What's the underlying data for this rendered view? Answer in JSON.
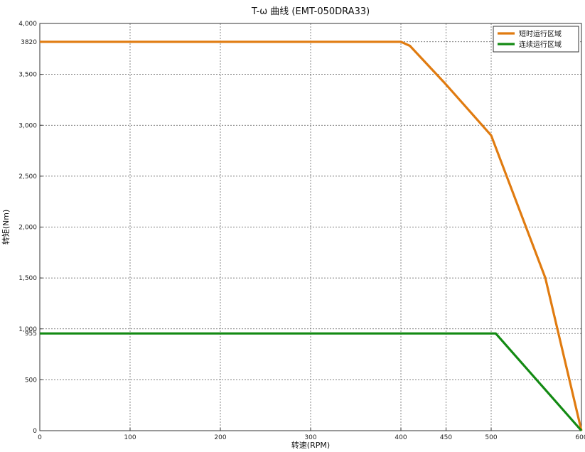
{
  "chart_data": {
    "type": "line",
    "title": "T-ω 曲线 (EMT-050DRA33)",
    "xlabel": "转速(RPM)",
    "ylabel": "转矩(Nm)",
    "xlim": [
      0,
      600
    ],
    "ylim": [
      0,
      4000
    ],
    "grid": true,
    "legend_position": "top-right",
    "x_ticks": [
      0,
      100,
      200,
      300,
      400,
      450,
      500,
      600
    ],
    "x_tick_labels": [
      "0",
      "100",
      "200",
      "300",
      "400",
      "450",
      "500",
      "600"
    ],
    "y_ticks": [
      0,
      500,
      955,
      1000,
      1500,
      2000,
      2500,
      3000,
      3500,
      3820,
      4000
    ],
    "y_tick_labels": [
      "0",
      "500",
      "955",
      "1,000",
      "1,500",
      "2,000",
      "2,500",
      "3,000",
      "3,500",
      "3820",
      "4,000"
    ],
    "series": [
      {
        "name": "短时运行区域",
        "color": "#E07B10",
        "x": [
          0,
          400,
          410,
          450,
          500,
          560,
          600
        ],
        "y": [
          3820,
          3820,
          3780,
          3400,
          2900,
          1500,
          0
        ]
      },
      {
        "name": "连续运行区域",
        "color": "#138A13",
        "x": [
          0,
          505,
          600
        ],
        "y": [
          955,
          955,
          0
        ]
      }
    ]
  }
}
